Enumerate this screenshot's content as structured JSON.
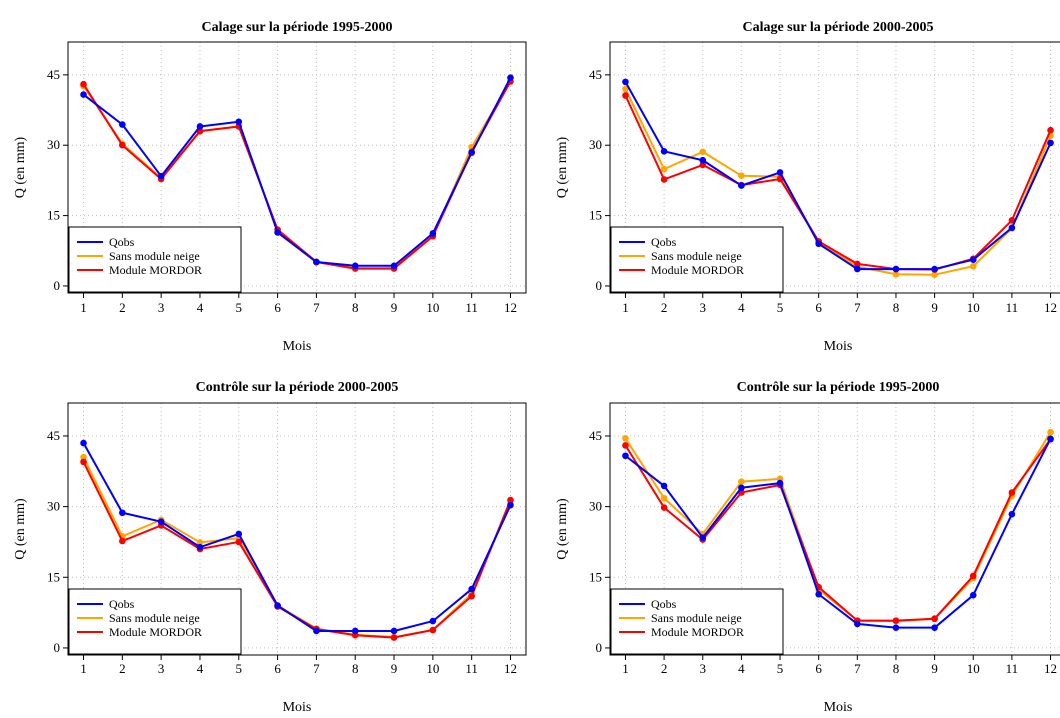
{
  "colors": {
    "qobs": "#0000ff",
    "sans": "#ffa500",
    "mordor": "#ff0000",
    "grid": "#c0c0c0",
    "axis": "#000000"
  },
  "chart_data": [
    {
      "type": "line",
      "title": "Calage sur la période   1995-2000",
      "xlabel": "Mois",
      "ylabel": "Q (en mm)",
      "categories": [
        1,
        2,
        3,
        4,
        5,
        6,
        7,
        8,
        9,
        10,
        11,
        12
      ],
      "yticks": [
        0,
        15,
        30,
        45
      ],
      "ylim": [
        -1.5,
        52
      ],
      "xlim": [
        0.6,
        12.4
      ],
      "grid": true,
      "legend_position": "bottom-left",
      "series": [
        {
          "name": "Qobs",
          "key": "qobs",
          "values": [
            40.8,
            34.4,
            23.4,
            34.0,
            35.0,
            11.4,
            5.1,
            4.3,
            4.3,
            11.2,
            28.4,
            44.4
          ]
        },
        {
          "name": "Sans module neige",
          "key": "sans",
          "values": [
            42.6,
            30.3,
            23.0,
            33.0,
            34.0,
            12.0,
            5.2,
            3.8,
            3.8,
            10.6,
            29.6,
            43.6
          ]
        },
        {
          "name": "Module MORDOR",
          "key": "mordor",
          "values": [
            43.0,
            30.0,
            22.8,
            33.0,
            34.0,
            12.0,
            5.1,
            3.7,
            3.7,
            10.6,
            28.6,
            43.6
          ]
        }
      ]
    },
    {
      "type": "line",
      "title": "Calage sur la période   2000-2005",
      "xlabel": "Mois",
      "ylabel": "Q (en mm)",
      "categories": [
        1,
        2,
        3,
        4,
        5,
        6,
        7,
        8,
        9,
        10,
        11,
        12
      ],
      "yticks": [
        0,
        15,
        30,
        45
      ],
      "ylim": [
        -1.5,
        52
      ],
      "xlim": [
        0.6,
        12.4
      ],
      "grid": true,
      "legend_position": "bottom-left",
      "series": [
        {
          "name": "Qobs",
          "key": "qobs",
          "values": [
            43.5,
            28.7,
            26.8,
            21.4,
            24.2,
            9.0,
            3.6,
            3.6,
            3.6,
            5.6,
            12.4,
            30.5
          ]
        },
        {
          "name": "Sans module neige",
          "key": "sans",
          "values": [
            42.0,
            24.9,
            28.6,
            23.5,
            23.3,
            9.5,
            4.1,
            2.5,
            2.4,
            4.2,
            12.3,
            32.0
          ]
        },
        {
          "name": "Module MORDOR",
          "key": "mordor",
          "values": [
            40.6,
            22.7,
            25.8,
            21.5,
            22.8,
            9.5,
            4.7,
            3.6,
            3.5,
            5.8,
            14.0,
            33.2
          ]
        }
      ]
    },
    {
      "type": "line",
      "title": "Contrôle sur la période   2000-2005",
      "xlabel": "Mois",
      "ylabel": "Q (en mm)",
      "categories": [
        1,
        2,
        3,
        4,
        5,
        6,
        7,
        8,
        9,
        10,
        11,
        12
      ],
      "yticks": [
        0,
        15,
        30,
        45
      ],
      "ylim": [
        -1.5,
        52
      ],
      "xlim": [
        0.6,
        12.4
      ],
      "grid": true,
      "legend_position": "bottom-left",
      "series": [
        {
          "name": "Qobs",
          "key": "qobs",
          "values": [
            43.5,
            28.7,
            26.8,
            21.4,
            24.2,
            9.0,
            3.6,
            3.6,
            3.6,
            5.7,
            12.5,
            30.3
          ]
        },
        {
          "name": "Sans module neige",
          "key": "sans",
          "values": [
            40.5,
            23.7,
            27.2,
            22.4,
            23.3,
            9.0,
            4.1,
            2.8,
            2.3,
            3.8,
            11.5,
            30.8
          ]
        },
        {
          "name": "Module MORDOR",
          "key": "mordor",
          "values": [
            39.5,
            22.7,
            26.0,
            21.0,
            22.5,
            8.8,
            4.0,
            2.7,
            2.2,
            3.8,
            11.0,
            31.4
          ]
        }
      ]
    },
    {
      "type": "line",
      "title": "Contrôle sur la période   1995-2000",
      "xlabel": "Mois",
      "ylabel": "Q (en mm)",
      "categories": [
        1,
        2,
        3,
        4,
        5,
        6,
        7,
        8,
        9,
        10,
        11,
        12
      ],
      "yticks": [
        0,
        15,
        30,
        45
      ],
      "ylim": [
        -1.5,
        52
      ],
      "xlim": [
        0.6,
        12.4
      ],
      "grid": true,
      "legend_position": "bottom-left",
      "series": [
        {
          "name": "Qobs",
          "key": "qobs",
          "values": [
            40.8,
            34.4,
            23.4,
            34.0,
            35.0,
            11.4,
            5.1,
            4.3,
            4.3,
            11.2,
            28.4,
            44.4
          ]
        },
        {
          "name": "Sans module neige",
          "key": "sans",
          "values": [
            44.5,
            31.8,
            24.2,
            35.3,
            35.9,
            12.4,
            5.8,
            5.7,
            6.2,
            14.8,
            32.3,
            45.8
          ]
        },
        {
          "name": "Module MORDOR",
          "key": "mordor",
          "values": [
            43.0,
            29.8,
            23.0,
            33.0,
            34.6,
            12.9,
            5.8,
            5.8,
            6.2,
            15.3,
            33.0,
            44.3
          ]
        }
      ]
    }
  ]
}
